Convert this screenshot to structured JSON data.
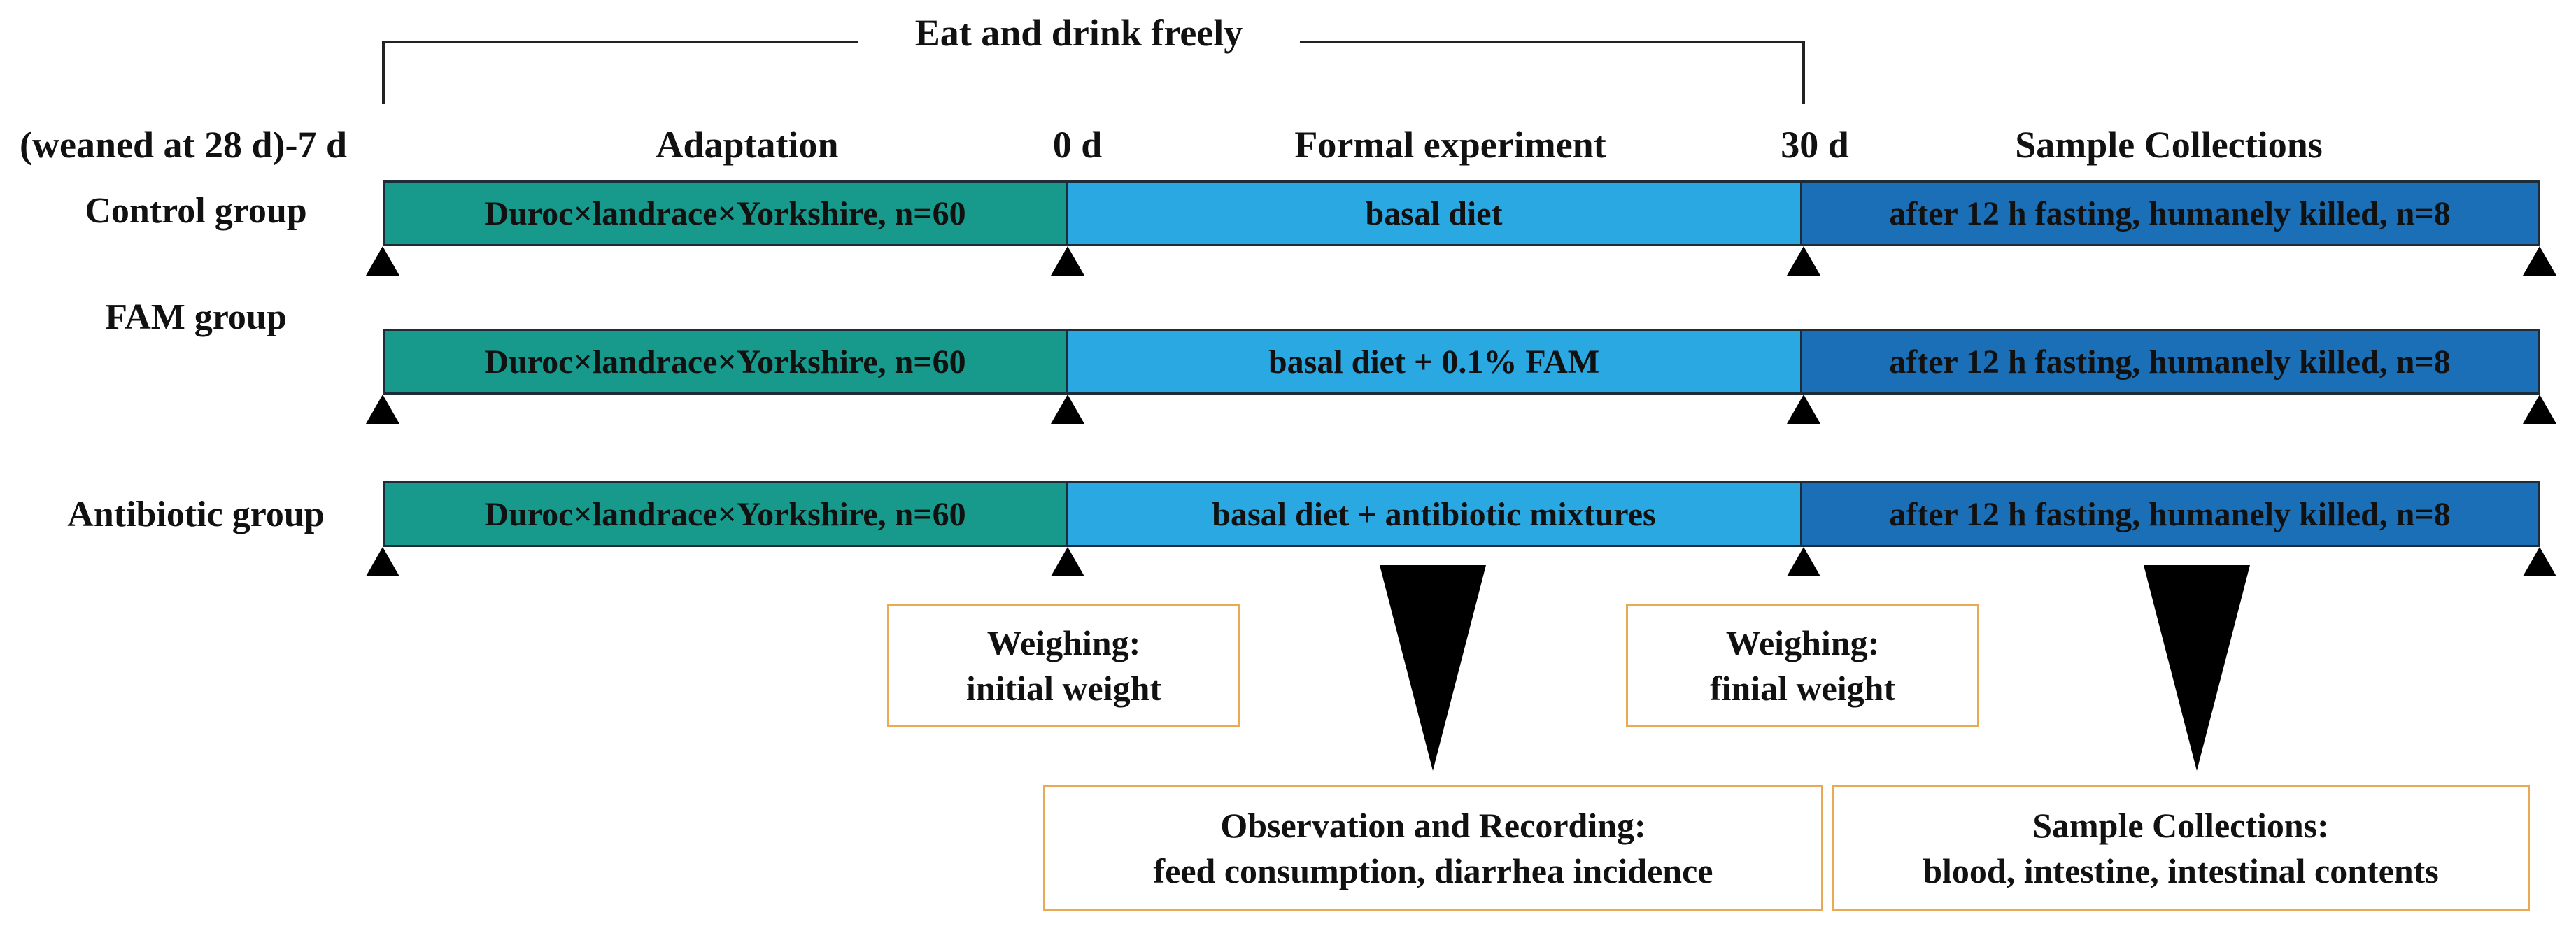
{
  "header_bracket": {
    "label": "Eat and drink freely"
  },
  "timeline": {
    "start_label": "(weaned at 28 d)-7 d",
    "phase_adaptation": "Adaptation",
    "day_0": "0 d",
    "phase_formal": "Formal experiment",
    "day_30": "30 d",
    "phase_sample": "Sample Collections"
  },
  "groups": [
    {
      "name": "Control group",
      "adaptation": "Duroc×landrace×Yorkshire, n=60",
      "diet": "basal diet",
      "sampling": "after 12 h fasting, humanely killed, n=8"
    },
    {
      "name": "FAM group",
      "adaptation": "Duroc×landrace×Yorkshire, n=60",
      "diet": "basal diet + 0.1% FAM",
      "sampling": "after 12 h fasting, humanely killed, n=8"
    },
    {
      "name": "Antibiotic group",
      "adaptation": "Duroc×landrace×Yorkshire, n=60",
      "diet": "basal diet + antibiotic mixtures",
      "sampling": "after 12 h fasting, humanely killed, n=8"
    }
  ],
  "annotations": {
    "initial_weighing": {
      "title": "Weighing:",
      "detail": "initial weight"
    },
    "final_weighing": {
      "title": "Weighing:",
      "detail": "finial weight"
    },
    "observation": {
      "title": "Observation and Recording:",
      "detail": "feed consumption, diarrhea incidence"
    },
    "sample_collection": {
      "title": "Sample Collections:",
      "detail": "blood, intestine, intestinal contents"
    }
  },
  "colors": {
    "adaptation": "#17998b",
    "formal": "#2aa8e2",
    "sampling": "#1a6fb6",
    "box_border": "#e8aa55",
    "outline": "#1e2b38"
  }
}
